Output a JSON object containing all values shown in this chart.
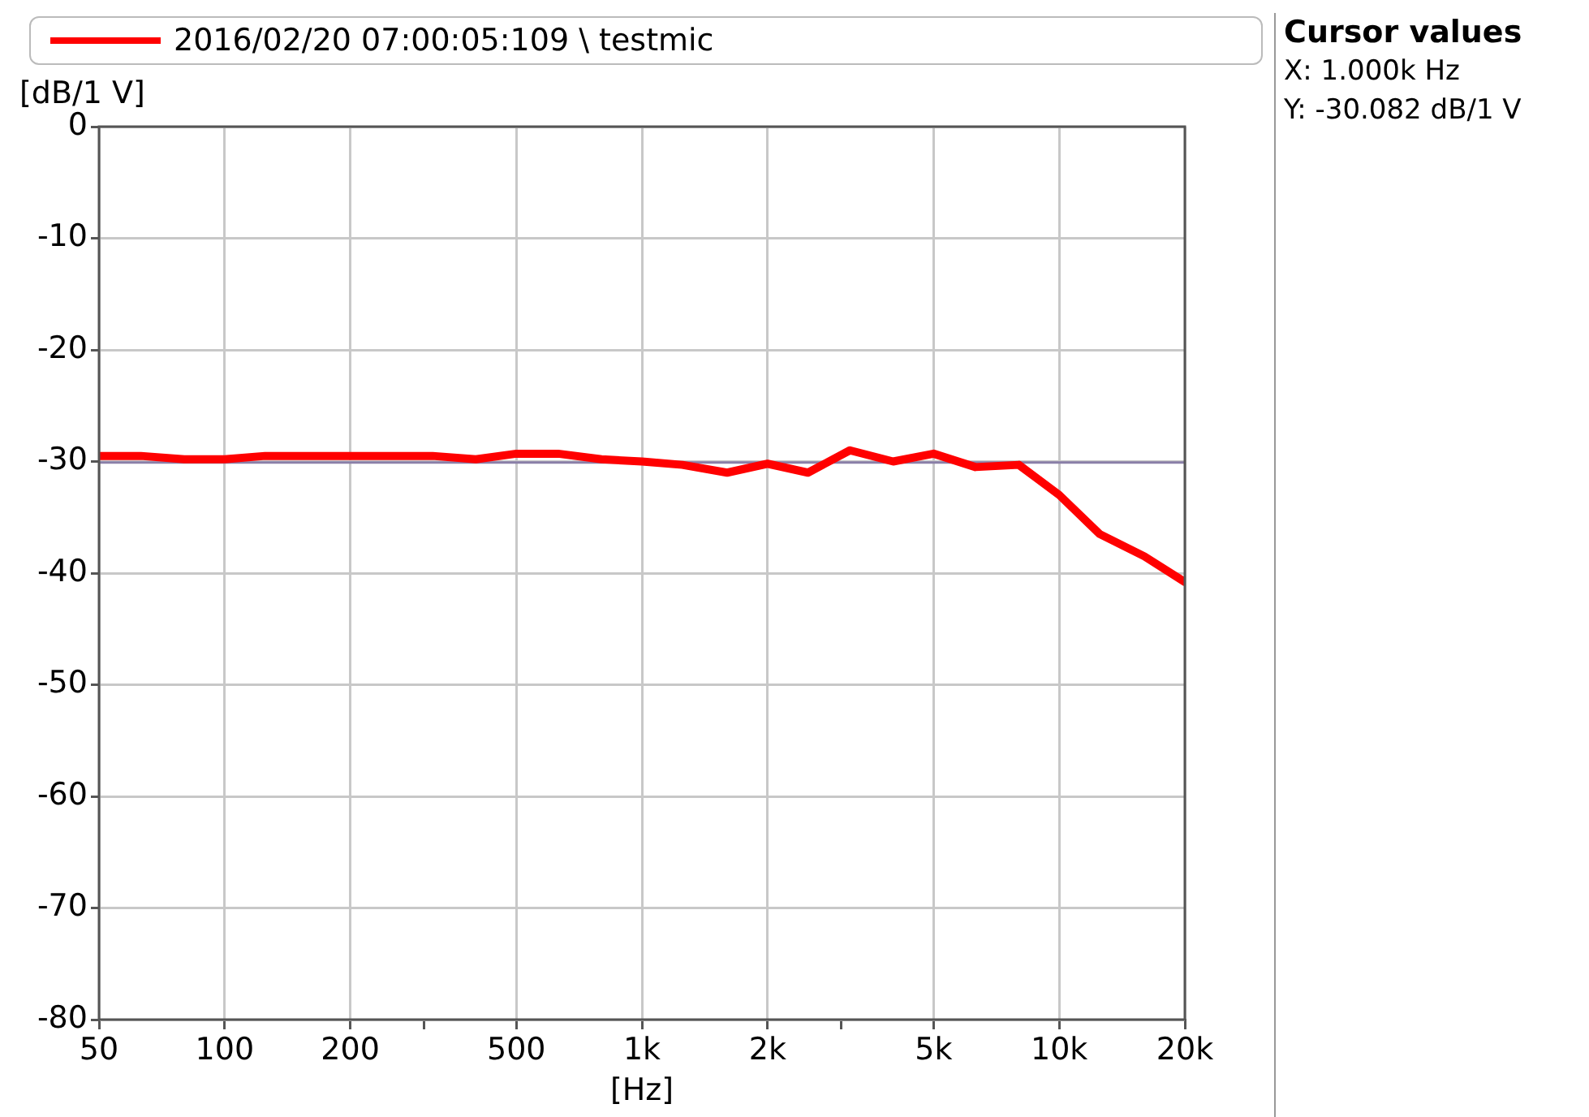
{
  "chart_data": {
    "type": "line",
    "xlabel": "[Hz]",
    "ylabel": "[dB/1 V]",
    "log": "x",
    "x": [
      50,
      63,
      80,
      100,
      125,
      160,
      200,
      250,
      315,
      400,
      500,
      630,
      800,
      1000,
      1250,
      1600,
      2000,
      2500,
      3150,
      4000,
      5000,
      6300,
      8000,
      10000,
      12500,
      16000,
      20000
    ],
    "series": [
      {
        "name": "2016/02/20 07:00:05:109 \\ testmic",
        "color": "#ff0000",
        "values": [
          -29.5,
          -29.5,
          -29.8,
          -29.8,
          -29.5,
          -29.5,
          -29.5,
          -29.5,
          -29.5,
          -29.8,
          -29.3,
          -29.3,
          -29.8,
          -30,
          -30.3,
          -31,
          -30.2,
          -31,
          -29,
          -30,
          -29.3,
          -30.5,
          -30.3,
          -33,
          -36.5,
          -38.5,
          -40.8
        ]
      }
    ],
    "xlim": [
      50,
      20000
    ],
    "xticks": [
      50,
      100,
      200,
      {
        "value": 300,
        "label": null
      },
      500,
      {
        "value": 1000,
        "label": "1k"
      },
      {
        "value": 2000,
        "label": "2k"
      },
      {
        "value": 3000,
        "label": null
      },
      {
        "value": 5000,
        "label": "5k"
      },
      {
        "value": 10000,
        "label": "10k"
      },
      {
        "value": 20000,
        "label": "20k"
      }
    ],
    "ylim": [
      -80,
      0
    ],
    "yticks": [
      -80,
      -70,
      -60,
      -50,
      -40,
      -30,
      -20,
      -10,
      0
    ],
    "grid": true,
    "legend": "top",
    "marker": "none",
    "line_style": "solid",
    "ref_lines": [
      {
        "axis": "y",
        "value": -30.082,
        "color": "#8a7fa8",
        "line_style": "solid"
      }
    ],
    "annotations": [
      "Cursor values",
      "X: 1.000k Hz",
      "Y: -30.082 dB/1 V"
    ]
  }
}
